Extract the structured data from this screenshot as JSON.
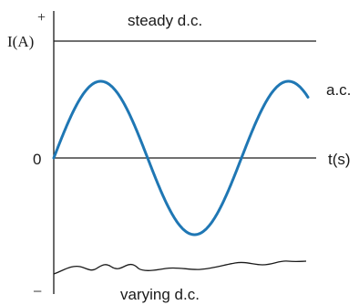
{
  "diagram": {
    "title": "steady d.c.",
    "y_axis": {
      "positive_sign": "+",
      "negative_sign": "−",
      "label": "I(A)",
      "zero_label": "0"
    },
    "x_axis": {
      "label": "t(s)"
    },
    "labels": {
      "ac": "a.c.",
      "varying_dc": "varying d.c."
    },
    "colors": {
      "ac_wave": "#1f77b4",
      "lines": "#1a1a1a"
    }
  }
}
